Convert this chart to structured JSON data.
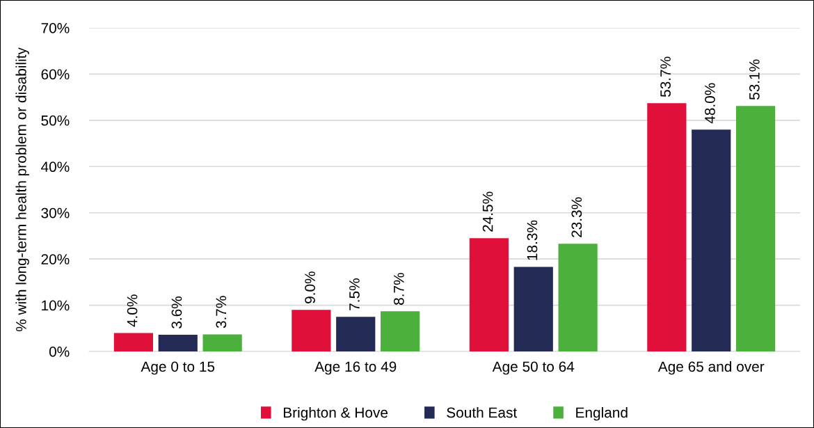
{
  "chart_data": {
    "type": "bar",
    "ylabel": "% with long-term health problem or disability",
    "categories": [
      "Age 0 to 15",
      "Age 16 to 49",
      "Age 50 to 64",
      "Age 65 and over"
    ],
    "series": [
      {
        "name": "Brighton & Hove",
        "color": "#e0103a",
        "values": [
          4.0,
          9.0,
          24.5,
          53.7
        ],
        "value_labels": [
          "4.0%",
          "9.0%",
          "24.5%",
          "53.7%"
        ]
      },
      {
        "name": "South East",
        "color": "#232b55",
        "values": [
          3.6,
          7.5,
          18.3,
          48.0
        ],
        "value_labels": [
          "3.6%",
          "7.5%",
          "18.3%",
          "48.0%"
        ]
      },
      {
        "name": "England",
        "color": "#4cb13c",
        "values": [
          3.7,
          8.7,
          23.3,
          53.1
        ],
        "value_labels": [
          "3.7%",
          "8.7%",
          "23.3%",
          "53.1%"
        ]
      }
    ],
    "ylim": [
      0,
      70
    ],
    "yticks": [
      {
        "value": 0,
        "label": "0%"
      },
      {
        "value": 10,
        "label": "10%"
      },
      {
        "value": 20,
        "label": "20%"
      },
      {
        "value": 30,
        "label": "30%"
      },
      {
        "value": 40,
        "label": "40%"
      },
      {
        "value": 50,
        "label": "50%"
      },
      {
        "value": 60,
        "label": "60%"
      },
      {
        "value": 70,
        "label": "70%"
      }
    ],
    "grid": "y",
    "legend": "bottom"
  }
}
